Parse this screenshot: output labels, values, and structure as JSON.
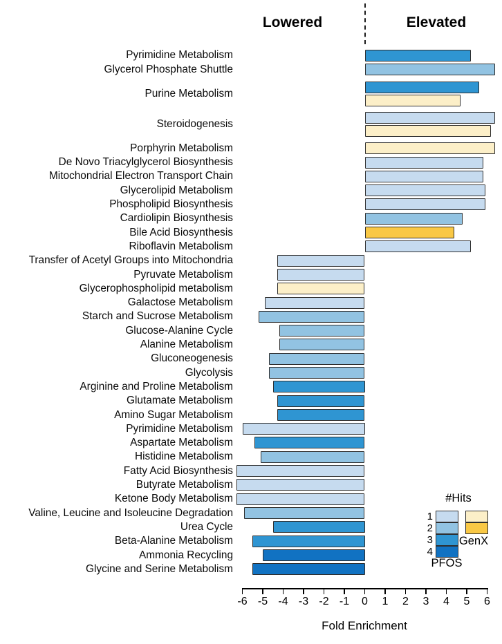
{
  "header": {
    "lowered": "Lowered",
    "elevated": "Elevated"
  },
  "colors": {
    "pfos_hits": [
      "#C6DBEF",
      "#92C3E2",
      "#2F95D2",
      "#1172C2"
    ],
    "genx_hits": [
      "#FCEFC8",
      "#F9C845"
    ],
    "bar_border": "#2e2e2e"
  },
  "legend": {
    "title": "#Hits",
    "levels": [
      "1",
      "2",
      "3",
      "4"
    ],
    "pfos_label": "PFOS",
    "genx_label": "GenX"
  },
  "chart_data": {
    "type": "bar",
    "orientation": "horizontal",
    "title": "",
    "xlabel": "Fold Enrichment",
    "ylabel": "",
    "xlim": [
      -6.5,
      6.5
    ],
    "x_ticks": [
      -6,
      -5,
      -4,
      -3,
      -2,
      -1,
      0,
      1,
      2,
      3,
      4,
      5,
      6
    ],
    "grid": false,
    "sections": {
      "negative": "Lowered",
      "positive": "Elevated"
    },
    "legend_position": "bottom-right",
    "groups": [
      {
        "pathway": "Pyrimidine Metabolism",
        "bars": [
          {
            "agent": "PFOS",
            "hits": 3,
            "value": 5.2
          }
        ]
      },
      {
        "pathway": "Glycerol Phosphate Shuttle",
        "bars": [
          {
            "agent": "PFOS",
            "hits": 2,
            "value": 6.4
          }
        ]
      },
      {
        "pathway": "Purine Metabolism",
        "gap_before": true,
        "bars": [
          {
            "agent": "PFOS",
            "hits": 3,
            "value": 5.6
          },
          {
            "agent": "GenX",
            "hits": 1,
            "value": 4.7
          }
        ]
      },
      {
        "pathway": "Steroidogenesis",
        "gap_before": true,
        "bars": [
          {
            "agent": "PFOS",
            "hits": 1,
            "value": 6.4
          },
          {
            "agent": "GenX",
            "hits": 1,
            "value": 6.2
          }
        ]
      },
      {
        "pathway": "Porphyrin Metabolism",
        "gap_before": true,
        "bars": [
          {
            "agent": "GenX",
            "hits": 1,
            "value": 6.4
          }
        ]
      },
      {
        "pathway": "De Novo Triacylglycerol Biosynthesis",
        "bars": [
          {
            "agent": "PFOS",
            "hits": 1,
            "value": 5.8
          }
        ]
      },
      {
        "pathway": "Mitochondrial Electron Transport Chain",
        "bars": [
          {
            "agent": "PFOS",
            "hits": 1,
            "value": 5.8
          }
        ]
      },
      {
        "pathway": "Glycerolipid Metabolism",
        "bars": [
          {
            "agent": "PFOS",
            "hits": 1,
            "value": 5.9
          }
        ]
      },
      {
        "pathway": "Phospholipid Biosynthesis",
        "bars": [
          {
            "agent": "PFOS",
            "hits": 1,
            "value": 5.9
          }
        ]
      },
      {
        "pathway": "Cardiolipin Biosynthesis",
        "bars": [
          {
            "agent": "PFOS",
            "hits": 2,
            "value": 4.8
          }
        ]
      },
      {
        "pathway": "Bile Acid Biosynthesis",
        "bars": [
          {
            "agent": "GenX",
            "hits": 2,
            "value": 4.4
          }
        ]
      },
      {
        "pathway": "Riboflavin Metabolism",
        "bars": [
          {
            "agent": "PFOS",
            "hits": 1,
            "value": 5.2
          }
        ]
      },
      {
        "pathway": "Transfer of Acetyl Groups into Mitochondria",
        "bars": [
          {
            "agent": "PFOS",
            "hits": 1,
            "value": -4.3
          }
        ]
      },
      {
        "pathway": "Pyruvate Metabolism",
        "bars": [
          {
            "agent": "PFOS",
            "hits": 1,
            "value": -4.3
          }
        ]
      },
      {
        "pathway": "Glycerophospholipid metabolism",
        "bars": [
          {
            "agent": "GenX",
            "hits": 1,
            "value": -4.3
          }
        ]
      },
      {
        "pathway": "Galactose Metabolism",
        "bars": [
          {
            "agent": "PFOS",
            "hits": 1,
            "value": -4.9
          }
        ]
      },
      {
        "pathway": "Starch and Sucrose Metabolism",
        "bars": [
          {
            "agent": "PFOS",
            "hits": 2,
            "value": -5.2
          }
        ]
      },
      {
        "pathway": "Glucose-Alanine Cycle",
        "bars": [
          {
            "agent": "PFOS",
            "hits": 2,
            "value": -4.2
          }
        ]
      },
      {
        "pathway": "Alanine Metabolism",
        "bars": [
          {
            "agent": "PFOS",
            "hits": 2,
            "value": -4.2
          }
        ]
      },
      {
        "pathway": "Gluconeogenesis",
        "bars": [
          {
            "agent": "PFOS",
            "hits": 2,
            "value": -4.7
          }
        ]
      },
      {
        "pathway": "Glycolysis",
        "bars": [
          {
            "agent": "PFOS",
            "hits": 2,
            "value": -4.7
          }
        ]
      },
      {
        "pathway": "Arginine and Proline Metabolism",
        "bars": [
          {
            "agent": "PFOS",
            "hits": 3,
            "value": -4.5
          }
        ]
      },
      {
        "pathway": "Glutamate Metabolism",
        "bars": [
          {
            "agent": "PFOS",
            "hits": 3,
            "value": -4.3
          }
        ]
      },
      {
        "pathway": "Amino Sugar Metabolism",
        "bars": [
          {
            "agent": "PFOS",
            "hits": 3,
            "value": -4.3
          }
        ]
      },
      {
        "pathway": "Pyrimidine Metabolism",
        "bars": [
          {
            "agent": "PFOS",
            "hits": 1,
            "value": -6.0
          }
        ]
      },
      {
        "pathway": "Aspartate Metabolism",
        "bars": [
          {
            "agent": "PFOS",
            "hits": 3,
            "value": -5.4
          }
        ]
      },
      {
        "pathway": "Histidine Metabolism",
        "bars": [
          {
            "agent": "PFOS",
            "hits": 2,
            "value": -5.1
          }
        ]
      },
      {
        "pathway": "Fatty Acid Biosynthesis",
        "bars": [
          {
            "agent": "PFOS",
            "hits": 1,
            "value": -6.3
          }
        ]
      },
      {
        "pathway": "Butyrate Metabolism",
        "bars": [
          {
            "agent": "PFOS",
            "hits": 1,
            "value": -6.3
          }
        ]
      },
      {
        "pathway": "Ketone Body Metabolism",
        "bars": [
          {
            "agent": "PFOS",
            "hits": 1,
            "value": -6.3
          }
        ]
      },
      {
        "pathway": "Valine, Leucine and Isoleucine Degradation",
        "bars": [
          {
            "agent": "PFOS",
            "hits": 2,
            "value": -5.9
          }
        ]
      },
      {
        "pathway": "Urea Cycle",
        "bars": [
          {
            "agent": "PFOS",
            "hits": 3,
            "value": -4.5
          }
        ]
      },
      {
        "pathway": "Beta-Alanine Metabolism",
        "bars": [
          {
            "agent": "PFOS",
            "hits": 3,
            "value": -5.5
          }
        ]
      },
      {
        "pathway": "Ammonia Recycling",
        "bars": [
          {
            "agent": "PFOS",
            "hits": 4,
            "value": -5.0
          }
        ]
      },
      {
        "pathway": "Glycine and Serine Metabolism",
        "bars": [
          {
            "agent": "PFOS",
            "hits": 4,
            "value": -5.5
          }
        ]
      }
    ]
  }
}
